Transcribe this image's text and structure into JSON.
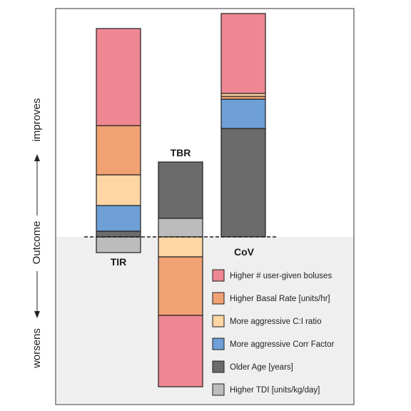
{
  "chart_data": {
    "type": "bar",
    "subtype": "stacked-waterfall",
    "y_axis": {
      "label_words": [
        "worsens",
        "Outcome",
        "improves"
      ]
    },
    "baseline": 0,
    "colors": {
      "boluses": "#ef8793",
      "basal": "#f1a172",
      "ci": "#fdd6a4",
      "corr": "#6e9fd6",
      "age": "#6b6b6b",
      "tdi": "#bcbcbc"
    },
    "legend": [
      {
        "key": "boluses",
        "label": "Higher # user-given boluses"
      },
      {
        "key": "basal",
        "label": "Higher Basal Rate [units/hr]"
      },
      {
        "key": "ci",
        "label": "More aggressive C:I ratio"
      },
      {
        "key": "corr",
        "label": "More aggressive Corr Factor"
      },
      {
        "key": "age",
        "label": "Older Age [years]"
      },
      {
        "key": "tdi",
        "label": "Higher TDI [units/kg/day]"
      }
    ],
    "bars": [
      {
        "label": "TIR",
        "segments": [
          {
            "key": "tdi",
            "from": 0,
            "to": -22
          },
          {
            "key": "age",
            "from": 0,
            "to": 8
          },
          {
            "key": "corr",
            "from": 8,
            "to": 44
          },
          {
            "key": "ci",
            "from": 44,
            "to": 87
          },
          {
            "key": "basal",
            "from": 87,
            "to": 156
          },
          {
            "key": "boluses",
            "from": 156,
            "to": 292
          }
        ]
      },
      {
        "label": "TBR",
        "segments": [
          {
            "key": "tdi",
            "from": 0,
            "to": 26
          },
          {
            "key": "age",
            "from": 26,
            "to": 105
          },
          {
            "key": "ci",
            "from": 0,
            "to": -28
          },
          {
            "key": "basal",
            "from": -28,
            "to": -110
          },
          {
            "key": "boluses",
            "from": -110,
            "to": -210
          }
        ]
      },
      {
        "label": "CoV",
        "segments": [
          {
            "key": "age",
            "from": 0,
            "to": 152
          },
          {
            "key": "corr",
            "from": 152,
            "to": 193
          },
          {
            "key": "basal",
            "from": 193,
            "to": 197
          },
          {
            "key": "ci",
            "from": 197,
            "to": 201
          },
          {
            "key": "boluses",
            "from": 201,
            "to": 313
          }
        ]
      }
    ]
  }
}
